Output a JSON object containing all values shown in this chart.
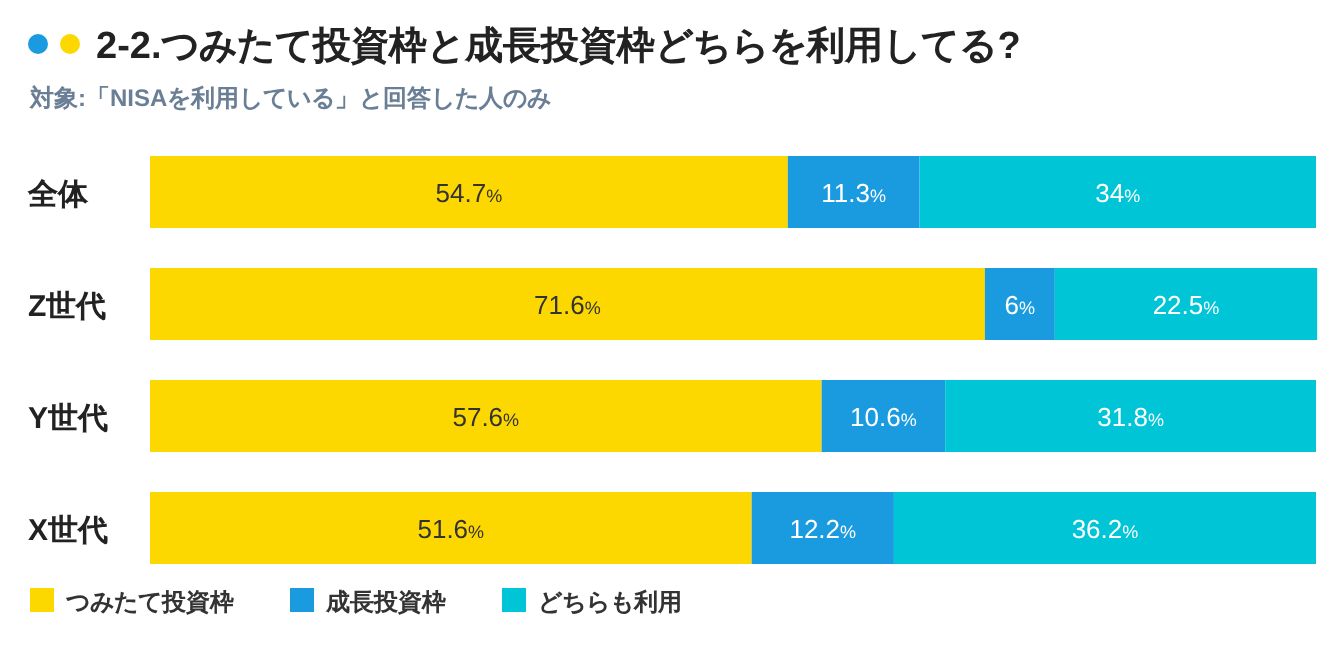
{
  "chart_data": {
    "type": "bar",
    "orientation": "horizontal",
    "stacked": true,
    "title": "2-2.つみたて投資枠と成長投資枠どちらを利用してる?",
    "subtitle": "対象:「NISAを利用している」と回答した人のみ",
    "categories": [
      "全体",
      "Z世代",
      "Y世代",
      "X世代"
    ],
    "xlim": [
      0,
      100
    ],
    "tick_labels": "y",
    "legend": "bottom left",
    "series": [
      {
        "name": "つみたて投資枠",
        "color": "#fdd800",
        "values": [
          54.7,
          71.6,
          57.6,
          51.6
        ],
        "value_labels": [
          "54.7%",
          "71.6%",
          "57.6%",
          "51.6%"
        ]
      },
      {
        "name": "成長投資枠",
        "color": "#1a9be0",
        "values": [
          11.3,
          6,
          10.6,
          12.2
        ],
        "value_labels": [
          "11.3%",
          "6%",
          "10.6%",
          "12.2%"
        ]
      },
      {
        "name": "どちらも利用",
        "color": "#00c5d6",
        "values": [
          34,
          22.5,
          31.8,
          36.2
        ],
        "value_labels": [
          "34%",
          "22.5%",
          "31.8%",
          "36.2%"
        ]
      }
    ]
  }
}
